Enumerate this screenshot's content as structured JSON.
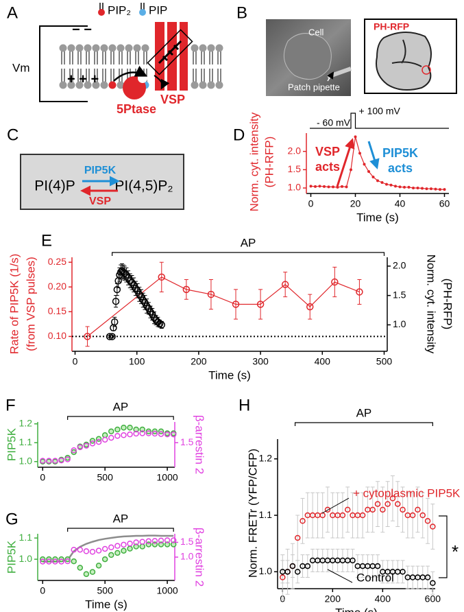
{
  "panels": [
    "A",
    "B",
    "C",
    "D",
    "E",
    "F",
    "G",
    "H"
  ],
  "diagram_a": {
    "vm": "Vm",
    "minus": "− −",
    "plus": "+ + +",
    "pip2": "PIP₂",
    "pip": "PIP",
    "vsp": "VSP",
    "ptase": "5Ptase"
  },
  "images_b": {
    "cell": "Cell",
    "pipette": "Patch pipette",
    "reporter": "PH-RFP"
  },
  "scheme_c": {
    "forward": "PIP5K",
    "substrate": "PI(4)P",
    "reverse": "VSP",
    "product": "PI(4,5)P₂"
  },
  "chart_data": [
    {
      "type": "line",
      "ylabel": [
        "Norm. cyt. intensity",
        "(PH-RFP)"
      ],
      "ylabel_color": "#e0262b",
      "xlabel": "Time (s)",
      "x": [
        0,
        2,
        4,
        6,
        8,
        10,
        12,
        14,
        16,
        18,
        20,
        22,
        24,
        26,
        28,
        30,
        32,
        34,
        36,
        38,
        40,
        42,
        44,
        46,
        48,
        50,
        52,
        54,
        56,
        58,
        60
      ],
      "series": [
        {
          "color": "#e0262b",
          "line": true,
          "marker": "dot",
          "values": [
            1.05,
            1.04,
            1.05,
            1.04,
            1.03,
            1.03,
            1.02,
            1.04,
            1.03,
            1.5,
            2.4,
            1.95,
            1.65,
            1.45,
            1.3,
            1.2,
            1.15,
            1.1,
            1.08,
            1.05,
            1.03,
            1.02,
            1.02,
            1.0,
            1.0,
            0.99,
            0.98,
            0.98,
            0.97,
            0.96,
            0.96
          ]
        }
      ],
      "xlim": [
        -2,
        62
      ],
      "ylim": [
        0.85,
        2.5
      ],
      "xticks": [
        0,
        20,
        40,
        60
      ],
      "yticks": [
        {
          "value": 1,
          "label": "1.0"
        },
        {
          "value": 1.5,
          "label": "1.5"
        },
        {
          "value": 2,
          "label": "2.0"
        }
      ],
      "annotations": [
        {
          "text": [
            "VSP",
            "acts"
          ],
          "color": "#e0262b"
        },
        {
          "text": [
            "PIP5K",
            "acts"
          ],
          "color": "#1e8fd6"
        }
      ],
      "protocol": {
        "labels": [
          "- 60 mV",
          "+ 100 mV"
        ]
      }
    },
    {
      "type": "line",
      "ylabel": [
        "Rate of PIP5K (1/s)",
        "(from VSP pulses)"
      ],
      "ylabel_color": "#e0262b",
      "y2label": [
        "Norm. cyt. intensity",
        "(PH-RFP)"
      ],
      "xlabel": "Time (s)",
      "series": [
        {
          "color": "#e0262b",
          "line": true,
          "marker": "open",
          "x": [
            20,
            140,
            180,
            220,
            260,
            300,
            340,
            380,
            420,
            460
          ],
          "values": [
            0.1,
            0.22,
            0.195,
            0.185,
            0.165,
            0.165,
            0.205,
            0.16,
            0.21,
            0.19
          ],
          "errors": [
            0.02,
            0.03,
            0.02,
            0.03,
            0.03,
            0.03,
            0.025,
            0.025,
            0.03,
            0.025
          ]
        },
        {
          "color": "#000000",
          "axis": "y2",
          "line": false,
          "marker": "open",
          "x": [
            56,
            60,
            62,
            64,
            66,
            68,
            70,
            72,
            74,
            76,
            78,
            80,
            83,
            86,
            89,
            92,
            95,
            98,
            101,
            104,
            107,
            110,
            113,
            116,
            119,
            122,
            125,
            128,
            131,
            134,
            137,
            140
          ],
          "values": [
            0.8,
            0.8,
            0.95,
            1.05,
            1.4,
            1.6,
            1.75,
            1.85,
            1.9,
            1.92,
            1.9,
            1.88,
            1.85,
            1.8,
            1.75,
            1.72,
            1.68,
            1.62,
            1.58,
            1.52,
            1.48,
            1.42,
            1.38,
            1.32,
            1.28,
            1.22,
            1.18,
            1.12,
            1.08,
            1.05,
            1.02,
            1.0
          ],
          "errors": [
            0.02,
            0.02,
            0.05,
            0.08,
            0.1,
            0.1,
            0.12,
            0.12,
            0.12,
            0.12,
            0.12,
            0.12,
            0.12,
            0.12,
            0.12,
            0.12,
            0.12,
            0.12,
            0.12,
            0.12,
            0.12,
            0.12,
            0.12,
            0.12,
            0.1,
            0.1,
            0.1,
            0.1,
            0.08,
            0.08,
            0.06,
            0.06
          ]
        }
      ],
      "xlim": [
        -5,
        505
      ],
      "ylim": [
        0.07,
        0.26
      ],
      "y2lim": [
        0.55,
        2.15
      ],
      "xticks": [
        0,
        100,
        200,
        300,
        400,
        500
      ],
      "yticks": [
        {
          "value": 0.1,
          "label": "0.10"
        },
        {
          "value": 0.15,
          "label": "0.15"
        },
        {
          "value": 0.2,
          "label": "0.20"
        },
        {
          "value": 0.25,
          "label": "0.25"
        }
      ],
      "y2ticks": [
        {
          "value": 1,
          "label": "1.0"
        },
        {
          "value": 1.5,
          "label": "1.5"
        },
        {
          "value": 2,
          "label": "2.0"
        }
      ],
      "hline": 0.1,
      "span": {
        "label": "AP",
        "x": [
          60,
          500
        ]
      }
    },
    {
      "type": "line",
      "ylabel": [
        "PIP5K"
      ],
      "ylabel_color": "#3fae3f",
      "y2label": [
        "β-arrestin 2"
      ],
      "y2label_color": "#e040e0",
      "x": [
        0,
        50,
        100,
        150,
        200,
        250,
        300,
        350,
        400,
        450,
        500,
        550,
        600,
        650,
        700,
        750,
        800,
        850,
        900,
        950,
        1000,
        1050
      ],
      "series": [
        {
          "color": "#3fae3f",
          "line": false,
          "marker": "open",
          "marker_fill": "#c6efbf",
          "values": [
            1.0,
            1.0,
            1.0,
            1.01,
            1.02,
            1.05,
            1.08,
            1.09,
            1.11,
            1.12,
            1.14,
            1.16,
            1.17,
            1.18,
            1.18,
            1.17,
            1.17,
            1.16,
            1.16,
            1.16,
            1.15,
            1.15
          ]
        },
        {
          "color": "#e040e0",
          "axis": "y2",
          "line": false,
          "marker": "open",
          "values": [
            1.02,
            1.02,
            1.02,
            1.03,
            1.06,
            1.3,
            1.38,
            1.42,
            1.48,
            1.52,
            1.58,
            1.63,
            1.68,
            1.7,
            1.72,
            1.74,
            1.75,
            1.75,
            1.74,
            1.73,
            1.72,
            1.72
          ]
        }
      ],
      "xlim": [
        -40,
        1060
      ],
      "ylim": [
        0.97,
        1.21
      ],
      "y2lim": [
        0.85,
        2.05
      ],
      "xticks": [
        0,
        500,
        1000
      ],
      "yticks": [
        {
          "value": 1,
          "label": "1.0"
        },
        {
          "value": 1.1,
          "label": "1.1"
        },
        {
          "value": 1.2,
          "label": "1.2"
        }
      ],
      "y2ticks": [
        {
          "value": 1.5,
          "label": "1.5"
        }
      ],
      "span": {
        "label": "AP",
        "x": [
          200,
          1050
        ]
      }
    },
    {
      "type": "line",
      "ylabel": [
        "PIP5K"
      ],
      "ylabel_color": "#3fae3f",
      "y2label": [
        "β-arrestin 2"
      ],
      "y2label_color": "#e040e0",
      "xlabel": "Time (s)",
      "x": [
        0,
        50,
        100,
        150,
        200,
        250,
        300,
        350,
        400,
        450,
        500,
        550,
        600,
        650,
        700,
        750,
        800,
        850,
        900,
        950,
        1000,
        1050
      ],
      "series": [
        {
          "color": "#8c8c8c",
          "axis": "y2",
          "line": true,
          "marker": "none",
          "values": [
            0.85,
            0.85,
            0.85,
            0.86,
            0.9,
            1.2,
            1.35,
            1.45,
            1.52,
            1.58,
            1.62,
            1.65,
            1.68,
            1.7,
            1.71,
            1.72,
            1.72,
            1.73,
            1.73,
            1.72,
            1.72,
            1.72
          ]
        },
        {
          "color": "#3fae3f",
          "line": false,
          "marker": "open",
          "marker_fill": "#c6efbf",
          "values": [
            1.0,
            1.0,
            1.0,
            1.0,
            1.0,
            0.99,
            0.96,
            0.93,
            0.94,
            0.97,
            1.0,
            1.02,
            1.03,
            1.04,
            1.05,
            1.06,
            1.06,
            1.07,
            1.07,
            1.07,
            1.07,
            1.07
          ]
        },
        {
          "color": "#e040e0",
          "axis": "y2",
          "line": false,
          "marker": "open",
          "values": [
            0.85,
            0.85,
            0.85,
            0.85,
            0.86,
            1.25,
            1.25,
            1.2,
            1.18,
            1.22,
            1.28,
            1.33,
            1.38,
            1.42,
            1.46,
            1.5,
            1.52,
            1.54,
            1.55,
            1.56,
            1.57,
            1.57
          ]
        }
      ],
      "xlim": [
        -40,
        1060
      ],
      "ylim": [
        0.9,
        1.12
      ],
      "y2lim": [
        0.21,
        1.79
      ],
      "xticks": [
        0,
        500,
        1000
      ],
      "yticks": [
        {
          "value": 1,
          "label": "1.0"
        },
        {
          "value": 1.1,
          "label": "1.1"
        }
      ],
      "y2ticks": [
        {
          "value": 1,
          "label": "1.0"
        },
        {
          "value": 1.5,
          "label": "1.5"
        }
      ],
      "span": {
        "label": "AP",
        "x": [
          200,
          1050
        ]
      }
    },
    {
      "type": "line",
      "ylabel": [
        "Norm. FRETr (YFP/CFP)"
      ],
      "xlabel": "Time (s)",
      "x": [
        0,
        20,
        40,
        60,
        80,
        100,
        120,
        140,
        160,
        180,
        200,
        220,
        240,
        260,
        280,
        300,
        320,
        340,
        360,
        380,
        400,
        420,
        440,
        460,
        480,
        500,
        520,
        540,
        560,
        580,
        600
      ],
      "series": [
        {
          "name": "+ cytoplasmic PIP5K",
          "color": "#e0262b",
          "line": false,
          "marker": "open",
          "error_color": "#c8c8c8",
          "values": [
            0.99,
            1.0,
            1.01,
            1.06,
            1.09,
            1.1,
            1.1,
            1.1,
            1.1,
            1.11,
            1.1,
            1.1,
            1.1,
            1.11,
            1.1,
            1.1,
            1.1,
            1.11,
            1.11,
            1.12,
            1.11,
            1.12,
            1.13,
            1.12,
            1.11,
            1.1,
            1.1,
            1.11,
            1.1,
            1.09,
            1.08
          ],
          "errors": [
            0.04,
            0.04,
            0.04,
            0.04,
            0.04,
            0.04,
            0.04,
            0.04,
            0.04,
            0.04,
            0.04,
            0.04,
            0.04,
            0.04,
            0.04,
            0.04,
            0.04,
            0.04,
            0.04,
            0.04,
            0.04,
            0.04,
            0.04,
            0.04,
            0.04,
            0.04,
            0.04,
            0.04,
            0.04,
            0.04,
            0.04
          ]
        },
        {
          "name": "Control",
          "color": "#000000",
          "line": false,
          "marker": "open",
          "error_color": "#c8c8c8",
          "values": [
            1.0,
            1.0,
            1.01,
            1.0,
            1.01,
            1.01,
            1.02,
            1.02,
            1.02,
            1.02,
            1.02,
            1.02,
            1.02,
            1.02,
            1.02,
            1.01,
            1.01,
            1.01,
            1.01,
            1.01,
            1.0,
            1.0,
            1.0,
            1.0,
            1.0,
            0.99,
            0.99,
            0.99,
            0.99,
            0.99,
            0.98
          ],
          "errors": [
            0.02,
            0.02,
            0.02,
            0.02,
            0.02,
            0.02,
            0.02,
            0.02,
            0.02,
            0.02,
            0.02,
            0.02,
            0.02,
            0.02,
            0.02,
            0.02,
            0.02,
            0.02,
            0.02,
            0.02,
            0.02,
            0.02,
            0.02,
            0.02,
            0.02,
            0.02,
            0.02,
            0.02,
            0.02,
            0.02,
            0.02
          ]
        }
      ],
      "xlim": [
        -20,
        610
      ],
      "ylim": [
        0.97,
        1.235
      ],
      "xticks": [
        0,
        200,
        400,
        600
      ],
      "yticks": [
        {
          "value": 1,
          "label": "1.0"
        },
        {
          "value": 1.1,
          "label": "1.1"
        },
        {
          "value": 1.2,
          "label": "1.2"
        }
      ],
      "span": {
        "label": "AP",
        "x": [
          50,
          600
        ]
      },
      "significance": "*"
    }
  ]
}
